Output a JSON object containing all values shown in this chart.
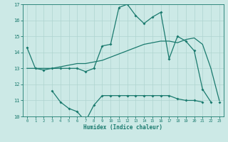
{
  "xlabel": "Humidex (Indice chaleur)",
  "x": [
    0,
    1,
    2,
    3,
    4,
    5,
    6,
    7,
    8,
    9,
    10,
    11,
    12,
    13,
    14,
    15,
    16,
    17,
    18,
    19,
    20,
    21,
    22,
    23
  ],
  "line_top": [
    14.3,
    13.0,
    12.9,
    13.0,
    13.0,
    13.0,
    13.0,
    12.8,
    13.0,
    14.4,
    14.5,
    16.8,
    17.0,
    16.3,
    15.8,
    16.2,
    16.5,
    13.6,
    15.0,
    14.7,
    14.1,
    11.7,
    10.9,
    null
  ],
  "line_mid": [
    13.0,
    13.0,
    13.0,
    13.0,
    13.1,
    13.2,
    13.3,
    13.3,
    13.4,
    13.5,
    13.7,
    13.9,
    14.1,
    14.3,
    14.5,
    14.6,
    14.7,
    14.7,
    14.6,
    14.8,
    14.9,
    14.5,
    13.0,
    11.0
  ],
  "line_bot": [
    null,
    null,
    null,
    11.6,
    10.9,
    10.5,
    10.3,
    9.7,
    10.7,
    11.3,
    11.3,
    11.3,
    11.3,
    11.3,
    11.3,
    11.3,
    11.3,
    11.3,
    11.1,
    11.0,
    11.0,
    10.9,
    null,
    10.9
  ],
  "ylim": [
    10,
    17
  ],
  "xlim": [
    -0.5,
    23.5
  ],
  "yticks": [
    10,
    11,
    12,
    13,
    14,
    15,
    16,
    17
  ],
  "xticks": [
    0,
    1,
    2,
    3,
    4,
    5,
    6,
    7,
    8,
    9,
    10,
    11,
    12,
    13,
    14,
    15,
    16,
    17,
    18,
    19,
    20,
    21,
    22,
    23
  ],
  "line_color": "#1a7a6e",
  "bg_color": "#cce9e6",
  "grid_color": "#afd4d0",
  "marker": "D",
  "markersize": 2.0,
  "linewidth": 0.9
}
